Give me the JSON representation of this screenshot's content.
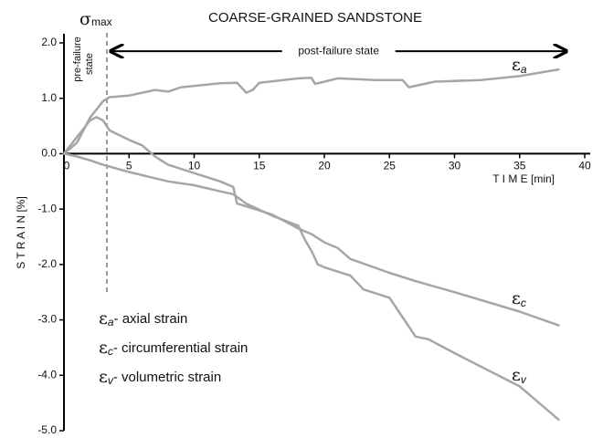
{
  "chart_data": {
    "type": "line",
    "title": "COARSE-GRAINED SANDSTONE",
    "x_label": "T I M E  [min]",
    "y_label": "S T R A I N  [%]",
    "xlim": [
      0,
      40
    ],
    "xticks": [
      0,
      5,
      10,
      15,
      20,
      25,
      30,
      35,
      40
    ],
    "ylim": [
      -5,
      2
    ],
    "yticks": [
      {
        "value": 2,
        "label": "2.0"
      },
      {
        "value": 1,
        "label": "1.0"
      },
      {
        "value": 0,
        "label": "0.0"
      },
      {
        "value": -1,
        "label": "-1.0"
      },
      {
        "value": -2,
        "label": "-2.0"
      },
      {
        "value": -3,
        "label": "-3.0"
      },
      {
        "value": -4,
        "label": "-4.0"
      },
      {
        "value": -5,
        "label": "-5.0"
      }
    ],
    "sigma_max": {
      "symbol": "σ",
      "subscript": "max",
      "x": 3.3
    },
    "pre_failure": [
      "pre-failure",
      "state"
    ],
    "post_failure": {
      "text": "post-failure state",
      "from": 3.6,
      "to": 38.6,
      "y": 1.85
    },
    "series": [
      {
        "name": "ε",
        "subscript": "a",
        "description": "- axial strain",
        "color": "#a6a6a6",
        "x": [
          0,
          1,
          2,
          3,
          3.5,
          5,
          7,
          8,
          9,
          12,
          13.3,
          14,
          14.5,
          15,
          18,
          19,
          19.3,
          20,
          21,
          24,
          26,
          26.5,
          27.5,
          28.5,
          32,
          35,
          38
        ],
        "values": [
          0,
          0.2,
          0.65,
          0.95,
          1.02,
          1.05,
          1.15,
          1.12,
          1.2,
          1.27,
          1.28,
          1.1,
          1.15,
          1.28,
          1.36,
          1.37,
          1.26,
          1.3,
          1.36,
          1.33,
          1.33,
          1.2,
          1.25,
          1.3,
          1.33,
          1.4,
          1.52
        ]
      },
      {
        "name": "ε",
        "subscript": "c",
        "description": "- circumferential strain",
        "color": "#a6a6a6",
        "x": [
          0,
          1,
          2,
          2.5,
          3,
          3.5,
          5,
          6,
          7,
          8,
          10,
          12,
          13,
          13.3,
          14,
          16,
          18,
          19,
          20,
          21,
          22,
          25,
          27,
          30,
          35,
          38
        ],
        "values": [
          0,
          0.3,
          0.6,
          0.66,
          0.6,
          0.42,
          0.25,
          0.15,
          -0.05,
          -0.2,
          -0.35,
          -0.5,
          -0.6,
          -0.9,
          -0.95,
          -1.1,
          -1.35,
          -1.45,
          -1.6,
          -1.7,
          -1.9,
          -2.15,
          -2.3,
          -2.5,
          -2.85,
          -3.1
        ]
      },
      {
        "name": "ε",
        "subscript": "v",
        "description": "- volumetric strain",
        "color": "#a6a6a6",
        "x": [
          0,
          1,
          2,
          3,
          5,
          8,
          10,
          12,
          13,
          14,
          16,
          18,
          18.5,
          19,
          19.5,
          20,
          22,
          23,
          25,
          26,
          27,
          28,
          30,
          35,
          38
        ],
        "values": [
          0,
          -0.05,
          -0.12,
          -0.2,
          -0.33,
          -0.5,
          -0.57,
          -0.68,
          -0.73,
          -0.9,
          -1.12,
          -1.3,
          -1.55,
          -1.75,
          -2.0,
          -2.05,
          -2.2,
          -2.45,
          -2.6,
          -2.95,
          -3.3,
          -3.35,
          -3.6,
          -4.2,
          -4.8
        ]
      }
    ]
  }
}
